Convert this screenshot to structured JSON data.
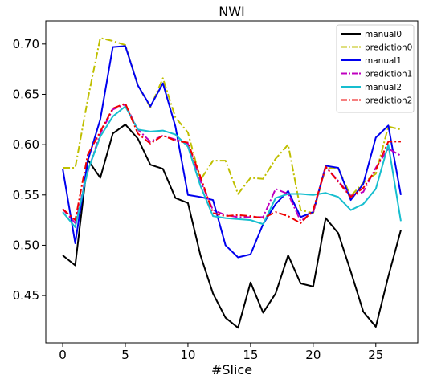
{
  "chart_data": {
    "type": "line",
    "title": "NWI",
    "xlabel": "#Slice",
    "ylabel": "",
    "xlim": [
      -1.35,
      28.35
    ],
    "ylim": [
      0.403,
      0.723
    ],
    "xticks": [
      0,
      5,
      10,
      15,
      20,
      25
    ],
    "yticks": [
      0.45,
      0.5,
      0.55,
      0.6,
      0.65,
      0.7
    ],
    "ytick_labels": [
      "0.45",
      "0.50",
      "0.55",
      "0.60",
      "0.65",
      "0.70"
    ],
    "grid": false,
    "legend_position": "top-right",
    "x": [
      0,
      1,
      2,
      3,
      4,
      5,
      6,
      7,
      8,
      9,
      10,
      11,
      12,
      13,
      14,
      15,
      16,
      17,
      18,
      19,
      20,
      21,
      22,
      23,
      24,
      25,
      26,
      27
    ],
    "series": [
      {
        "name": "manual0",
        "color": "#000000",
        "dash": "solid",
        "values": [
          0.49,
          0.48,
          0.585,
          0.567,
          0.611,
          0.62,
          0.606,
          0.58,
          0.576,
          0.547,
          0.542,
          0.49,
          0.452,
          0.428,
          0.418,
          0.463,
          0.433,
          0.452,
          0.49,
          0.462,
          0.459,
          0.527,
          0.512,
          0.474,
          0.434,
          0.419,
          0.469,
          0.515
        ]
      },
      {
        "name": "prediction0",
        "color": "#bfbf00",
        "dash": "dashdot",
        "values": [
          0.577,
          0.577,
          0.645,
          0.706,
          0.703,
          0.699,
          0.659,
          0.637,
          0.666,
          0.627,
          0.612,
          0.565,
          0.584,
          0.584,
          0.551,
          0.567,
          0.566,
          0.586,
          0.6,
          0.535,
          0.532,
          0.577,
          0.576,
          0.549,
          0.562,
          0.571,
          0.618,
          0.615
        ]
      },
      {
        "name": "manual1",
        "color": "#0000ee",
        "dash": "solid",
        "values": [
          0.576,
          0.502,
          0.584,
          0.625,
          0.697,
          0.698,
          0.659,
          0.638,
          0.661,
          0.618,
          0.55,
          0.548,
          0.545,
          0.5,
          0.488,
          0.491,
          0.521,
          0.541,
          0.554,
          0.528,
          0.533,
          0.579,
          0.577,
          0.545,
          0.561,
          0.607,
          0.619,
          0.55
        ]
      },
      {
        "name": "prediction1",
        "color": "#bf00bf",
        "dash": "dashdot",
        "values": [
          0.536,
          0.522,
          0.573,
          0.611,
          0.635,
          0.64,
          0.615,
          0.603,
          0.609,
          0.605,
          0.601,
          0.564,
          0.535,
          0.53,
          0.528,
          0.528,
          0.528,
          0.556,
          0.551,
          0.524,
          0.533,
          0.578,
          0.564,
          0.549,
          0.553,
          0.577,
          0.596,
          0.589
        ]
      },
      {
        "name": "manual2",
        "color": "#17becf",
        "dash": "solid",
        "values": [
          0.533,
          0.518,
          0.574,
          0.608,
          0.628,
          0.638,
          0.615,
          0.613,
          0.614,
          0.61,
          0.598,
          0.559,
          0.529,
          0.527,
          0.526,
          0.525,
          0.521,
          0.547,
          0.551,
          0.551,
          0.55,
          0.552,
          0.548,
          0.535,
          0.541,
          0.556,
          0.6,
          0.524
        ]
      },
      {
        "name": "prediction2",
        "color": "#ee0000",
        "dash": "dashdot",
        "values": [
          0.536,
          0.525,
          0.59,
          0.613,
          0.636,
          0.641,
          0.611,
          0.601,
          0.609,
          0.604,
          0.602,
          0.568,
          0.532,
          0.529,
          0.53,
          0.529,
          0.527,
          0.533,
          0.529,
          0.522,
          0.535,
          0.578,
          0.563,
          0.548,
          0.557,
          0.575,
          0.603,
          0.603
        ]
      }
    ]
  }
}
